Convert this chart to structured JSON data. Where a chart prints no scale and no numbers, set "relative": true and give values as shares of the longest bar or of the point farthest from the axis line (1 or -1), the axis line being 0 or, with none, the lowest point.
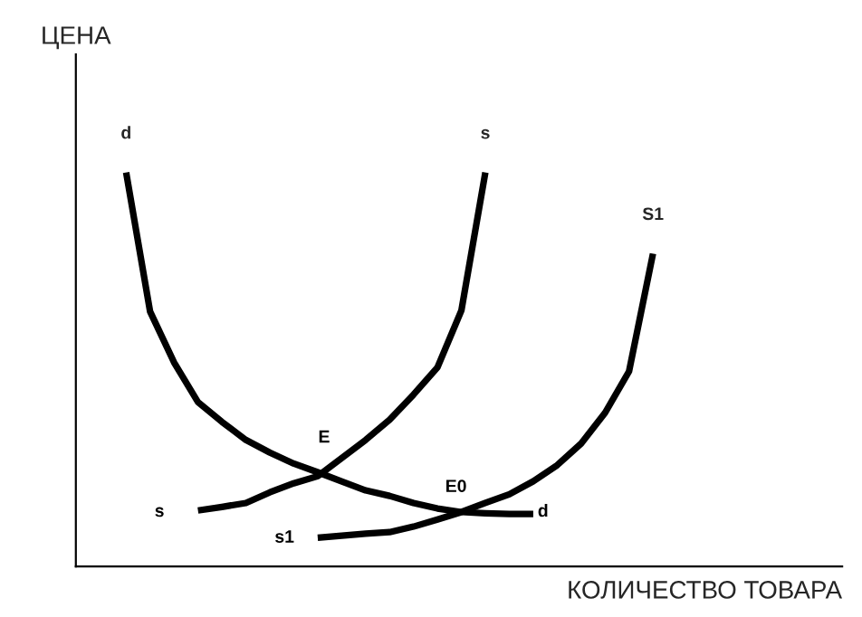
{
  "chart_data": {
    "type": "line",
    "relative": true,
    "xlabel": "КОЛИЧЕСТВО ТОВАРА",
    "ylabel": "ЦЕНА",
    "line_style": "solid",
    "categories": [
      null,
      null,
      null,
      null,
      null,
      null,
      null,
      null,
      null,
      null,
      null,
      null,
      null,
      null,
      null,
      null,
      null,
      null,
      null,
      null,
      null,
      null,
      null
    ],
    "series": [
      {
        "name": "d",
        "color": "#000000",
        "values": [
          1.0,
          0.647,
          0.518,
          0.417,
          0.367,
          0.321,
          0.289,
          0.261,
          0.239,
          0.216,
          0.193,
          0.179,
          0.161,
          0.147,
          0.138,
          0.135,
          0.133,
          0.133,
          null,
          null,
          null,
          null,
          null
        ]
      },
      {
        "name": "s",
        "color": "#000000",
        "values": [
          null,
          null,
          null,
          0.142,
          0.151,
          0.161,
          0.188,
          0.211,
          0.229,
          0.275,
          0.321,
          0.372,
          0.436,
          0.505,
          0.65,
          1.0,
          null,
          null,
          null,
          null,
          null,
          null,
          null
        ]
      },
      {
        "name": "S1",
        "color": "#000000",
        "values": [
          null,
          null,
          null,
          null,
          null,
          null,
          null,
          null,
          0.073,
          0.078,
          0.083,
          0.087,
          0.101,
          0.119,
          0.138,
          0.161,
          0.183,
          0.216,
          0.257,
          0.312,
          0.39,
          0.495,
          0.794
        ]
      }
    ],
    "annotations": [
      "E",
      "E0",
      "s",
      "d",
      "s1"
    ]
  }
}
